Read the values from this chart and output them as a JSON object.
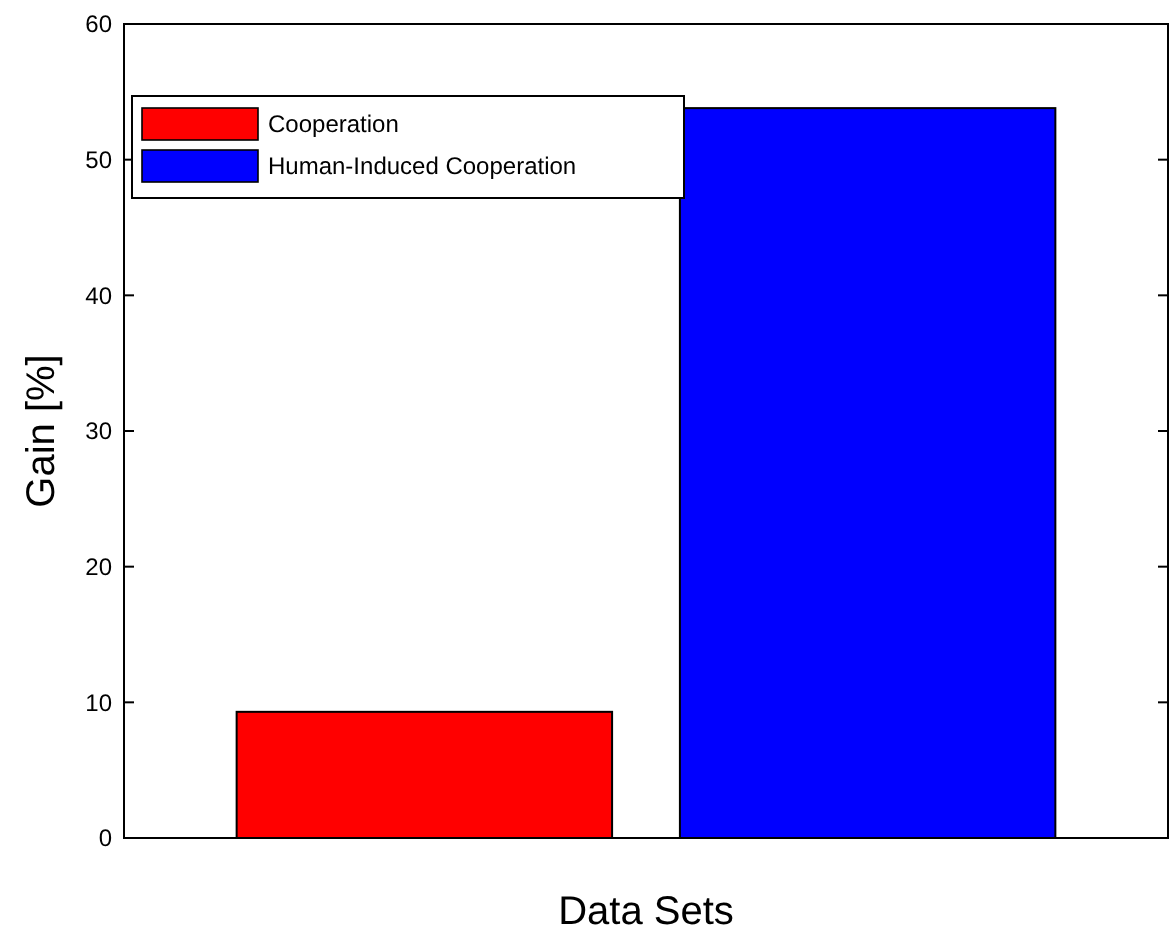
{
  "chart_data": {
    "type": "bar",
    "xlabel": "Data Sets",
    "ylabel": "Gain [%]",
    "categories": [
      null
    ],
    "series": [
      {
        "name": "Cooperation",
        "color": "#ff0000",
        "values": [
          9.3
        ]
      },
      {
        "name": "Human-Induced Cooperation",
        "color": "#0000ff",
        "values": [
          53.8
        ]
      }
    ],
    "ylim": [
      0,
      60
    ],
    "yticks": [
      0,
      10,
      20,
      30,
      40,
      50,
      60
    ],
    "grid": false,
    "legend": "top left"
  }
}
